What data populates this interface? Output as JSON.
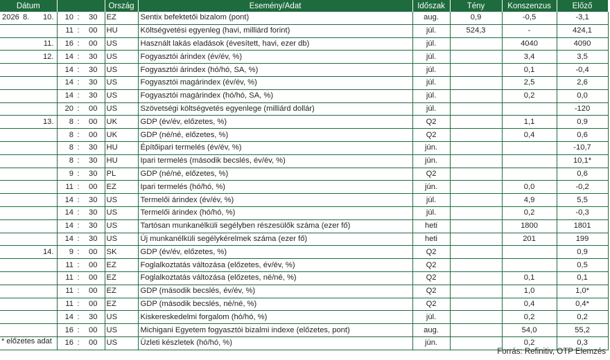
{
  "headers": {
    "date": "Dátum",
    "country": "Ország",
    "event": "Esemény/Adat",
    "period": "Időszak",
    "actual": "Tény",
    "consensus": "Konszenzus",
    "previous": "Előző"
  },
  "rows": [
    {
      "y": "2026",
      "m": "8.",
      "d": "10.",
      "h": "10",
      "min": "30",
      "c": "EZ",
      "e": "Sentix befektetői bizalom (pont)",
      "p": "aug.",
      "a": "0,9",
      "k": "-0,5",
      "prev": "-3,1"
    },
    {
      "y": "",
      "m": "",
      "d": "",
      "h": "11",
      "min": "00",
      "c": "HU",
      "e": "Költségvetési egyenleg (havi, milliárd forint)",
      "p": "júl.",
      "a": "524,3",
      "k": "-",
      "prev": "424,1"
    },
    {
      "y": "",
      "m": "",
      "d": "11.",
      "h": "16",
      "min": "00",
      "c": "US",
      "e": "Használt lakás eladások (évesített, havi, ezer db)",
      "p": "júl.",
      "a": "",
      "k": "4040",
      "prev": "4090"
    },
    {
      "y": "",
      "m": "",
      "d": "12.",
      "h": "14",
      "min": "30",
      "c": "US",
      "e": "Fogyasztói árindex (év/év, %)",
      "p": "júl.",
      "a": "",
      "k": "3,4",
      "prev": "3,5"
    },
    {
      "y": "",
      "m": "",
      "d": "",
      "h": "14",
      "min": "30",
      "c": "US",
      "e": "Fogyasztói árindex (hó/hó, SA, %)",
      "p": "júl.",
      "a": "",
      "k": "0,1",
      "prev": "-0,4"
    },
    {
      "y": "",
      "m": "",
      "d": "",
      "h": "14",
      "min": "30",
      "c": "US",
      "e": "Fogyasztói magárindex (év/év, %)",
      "p": "júl.",
      "a": "",
      "k": "2,5",
      "prev": "2,6"
    },
    {
      "y": "",
      "m": "",
      "d": "",
      "h": "14",
      "min": "30",
      "c": "US",
      "e": "Fogyasztói magárindex (hó/hó, SA, %)",
      "p": "júl.",
      "a": "",
      "k": "0,2",
      "prev": "0,0"
    },
    {
      "y": "",
      "m": "",
      "d": "",
      "h": "20",
      "min": "00",
      "c": "US",
      "e": "Szövetségi költségvetés egyenlege (milliárd dollár)",
      "p": "júl.",
      "a": "",
      "k": "",
      "prev": "-120"
    },
    {
      "y": "",
      "m": "",
      "d": "13.",
      "h": "8",
      "min": "00",
      "c": "UK",
      "e": "GDP (év/év, előzetes, %)",
      "p": "Q2",
      "a": "",
      "k": "1,1",
      "prev": "0,9"
    },
    {
      "y": "",
      "m": "",
      "d": "",
      "h": "8",
      "min": "00",
      "c": "UK",
      "e": "GDP (né/né, előzetes, %)",
      "p": "Q2",
      "a": "",
      "k": "0,4",
      "prev": "0,6"
    },
    {
      "y": "",
      "m": "",
      "d": "",
      "h": "8",
      "min": "30",
      "c": "HU",
      "e": "Építőipari termelés (év/év, %)",
      "p": "jún.",
      "a": "",
      "k": "",
      "prev": "-10,7"
    },
    {
      "y": "",
      "m": "",
      "d": "",
      "h": "8",
      "min": "30",
      "c": "HU",
      "e": "Ipari termelés (második becslés, év/év, %)",
      "p": "jún.",
      "a": "",
      "k": "",
      "prev": "10,1*"
    },
    {
      "y": "",
      "m": "",
      "d": "",
      "h": "9",
      "min": "30",
      "c": "PL",
      "e": "GDP (né/né, előzetes, %)",
      "p": "Q2",
      "a": "",
      "k": "",
      "prev": "0,6"
    },
    {
      "y": "",
      "m": "",
      "d": "",
      "h": "11",
      "min": "00",
      "c": "EZ",
      "e": "Ipari termelés (hó/hó, %)",
      "p": "jún.",
      "a": "",
      "k": "0,0",
      "prev": "-0,2"
    },
    {
      "y": "",
      "m": "",
      "d": "",
      "h": "14",
      "min": "30",
      "c": "US",
      "e": "Termelői árindex (év/év, %)",
      "p": "júl.",
      "a": "",
      "k": "4,9",
      "prev": "5,5"
    },
    {
      "y": "",
      "m": "",
      "d": "",
      "h": "14",
      "min": "30",
      "c": "US",
      "e": "Termelői árindex (hó/hó, %)",
      "p": "júl.",
      "a": "",
      "k": "0,2",
      "prev": "-0,3"
    },
    {
      "y": "",
      "m": "",
      "d": "",
      "h": "14",
      "min": "30",
      "c": "US",
      "e": "Tartósan munkanélküli segélyben részesülők száma (ezer fő)",
      "p": "heti",
      "a": "",
      "k": "1800",
      "prev": "1801"
    },
    {
      "y": "",
      "m": "",
      "d": "",
      "h": "14",
      "min": "30",
      "c": "US",
      "e": "Új munkanélküli segélykérelmek száma (ezer fő)",
      "p": "heti",
      "a": "",
      "k": "201",
      "prev": "199"
    },
    {
      "y": "",
      "m": "",
      "d": "14.",
      "h": "9",
      "min": "00",
      "c": "SK",
      "e": "GDP (év/év, előzetes, %)",
      "p": "Q2",
      "a": "",
      "k": "",
      "prev": "0,9"
    },
    {
      "y": "",
      "m": "",
      "d": "",
      "h": "11",
      "min": "00",
      "c": "EZ",
      "e": "Foglalkoztatás változása (előzetes, év/év, %)",
      "p": "Q2",
      "a": "",
      "k": "",
      "prev": "0,5"
    },
    {
      "y": "",
      "m": "",
      "d": "",
      "h": "11",
      "min": "00",
      "c": "EZ",
      "e": "Foglalkoztatás változása (előzetes, né/né, %)",
      "p": "Q2",
      "a": "",
      "k": "0,1",
      "prev": "0,1"
    },
    {
      "y": "",
      "m": "",
      "d": "",
      "h": "11",
      "min": "00",
      "c": "EZ",
      "e": "GDP (második becslés, év/év, %)",
      "p": "Q2",
      "a": "",
      "k": "1,0",
      "prev": "1,0*"
    },
    {
      "y": "",
      "m": "",
      "d": "",
      "h": "11",
      "min": "00",
      "c": "EZ",
      "e": "GDP (második becslés, né/né, %)",
      "p": "Q2",
      "a": "",
      "k": "0,4",
      "prev": "0,4*"
    },
    {
      "y": "",
      "m": "",
      "d": "",
      "h": "14",
      "min": "30",
      "c": "US",
      "e": "Kiskereskedelmi forgalom (hó/hó, %)",
      "p": "júl.",
      "a": "",
      "k": "0,2",
      "prev": "0,2"
    },
    {
      "y": "",
      "m": "",
      "d": "",
      "h": "16",
      "min": "00",
      "c": "US",
      "e": "Michigani Egyetem fogyasztói bizalmi indexe (előzetes, pont)",
      "p": "aug.",
      "a": "",
      "k": "54,0",
      "prev": "55,2"
    },
    {
      "y": "",
      "m": "",
      "d": "",
      "h": "16",
      "min": "00",
      "c": "US",
      "e": "Üzleti készletek (hó/hó, %)",
      "p": "jún.",
      "a": "",
      "k": "0,2",
      "prev": "0,3"
    }
  ],
  "footnote": "* előzetes adat",
  "source": "Forrás: Refinitiv, OTP Elemzés"
}
